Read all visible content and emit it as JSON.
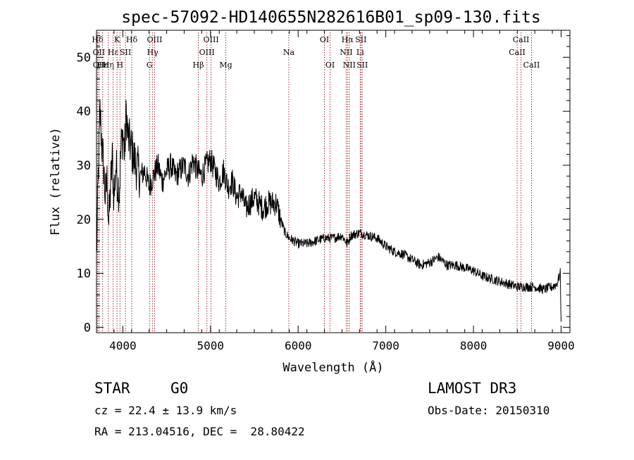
{
  "chart_data": {
    "type": "line",
    "title": "spec-57092-HD140655N282616B01_sp09-130.fits",
    "xlabel": "Wavelength (Å)",
    "ylabel": "Flux (relative)",
    "xlim": [
      3700,
      9100
    ],
    "ylim": [
      -1,
      55
    ],
    "x_ticks": [
      4000,
      5000,
      6000,
      7000,
      8000,
      9000
    ],
    "y_ticks": [
      0,
      10,
      20,
      30,
      40,
      50
    ],
    "x_tick_labels": [
      "4000",
      "5000",
      "6000",
      "7000",
      "8000",
      "9000"
    ],
    "y_tick_labels": [
      "0",
      "10",
      "20",
      "30",
      "40",
      "50"
    ],
    "grid": false,
    "series": [
      {
        "name": "flux",
        "color": "#000000",
        "x": [
          3700,
          3720,
          3740,
          3760,
          3780,
          3800,
          3820,
          3840,
          3860,
          3880,
          3900,
          3920,
          3940,
          3960,
          3980,
          4000,
          4020,
          4040,
          4060,
          4080,
          4100,
          4150,
          4200,
          4250,
          4300,
          4350,
          4400,
          4450,
          4500,
          4550,
          4600,
          4650,
          4700,
          4750,
          4800,
          4850,
          4900,
          4950,
          5000,
          5050,
          5100,
          5150,
          5200,
          5250,
          5300,
          5350,
          5400,
          5450,
          5500,
          5550,
          5600,
          5650,
          5700,
          5750,
          5800,
          5850,
          5900,
          5950,
          6000,
          6100,
          6200,
          6300,
          6400,
          6500,
          6560,
          6600,
          6700,
          6800,
          6900,
          7000,
          7100,
          7200,
          7300,
          7400,
          7500,
          7600,
          7700,
          7800,
          7900,
          8000,
          8100,
          8200,
          8300,
          8400,
          8500,
          8600,
          8700,
          8800,
          8900,
          8950,
          8990,
          9000
        ],
        "values": [
          13,
          28,
          40,
          34,
          30,
          24,
          27,
          19,
          26,
          31,
          24,
          30,
          27,
          25,
          33,
          36,
          32,
          40,
          35,
          34,
          33,
          30,
          28,
          29,
          26,
          28,
          30,
          27,
          29,
          30,
          28,
          29,
          30,
          28,
          31,
          29,
          28,
          30,
          31,
          29,
          27,
          29,
          26,
          27,
          24,
          25,
          22,
          23,
          24,
          23,
          22,
          23,
          23,
          23,
          20,
          17.5,
          16.5,
          16,
          15.5,
          15.5,
          16,
          16.5,
          16.5,
          17,
          15.5,
          17,
          17.5,
          17,
          16.5,
          15,
          14,
          13.5,
          12.5,
          11.5,
          12,
          13,
          11.5,
          11.5,
          11,
          10.5,
          9.5,
          9,
          8.5,
          8,
          7.5,
          7.5,
          7.5,
          7,
          7.5,
          8,
          10,
          1
        ]
      }
    ],
    "spectral_lines": [
      {
        "label": "Hδ",
        "wavelength": 3712,
        "row": 0
      },
      {
        "label": "OII",
        "wavelength": 3727,
        "row": 1
      },
      {
        "label": "OII",
        "wavelength": 3729,
        "row": 2
      },
      {
        "label": "Hε",
        "wavelength": 3770,
        "row": 2
      },
      {
        "label": "Hη",
        "wavelength": 3835,
        "row": 2
      },
      {
        "label": "Hε",
        "wavelength": 3889,
        "row": 1
      },
      {
        "label": "K",
        "wavelength": 3934,
        "row": 0
      },
      {
        "label": "H",
        "wavelength": 3968,
        "row": 2
      },
      {
        "label": "SII",
        "wavelength": 4030,
        "row": 1
      },
      {
        "label": "Hδ",
        "wavelength": 4102,
        "row": 0
      },
      {
        "label": "Hγ",
        "wavelength": 4340,
        "row": 1
      },
      {
        "label": "OIII",
        "wavelength": 4363,
        "row": 0
      },
      {
        "label": "G",
        "wavelength": 4305,
        "row": 2
      },
      {
        "label": "Hβ",
        "wavelength": 4861,
        "row": 2
      },
      {
        "label": "OIII",
        "wavelength": 4959,
        "row": 1
      },
      {
        "label": "OIII",
        "wavelength": 5007,
        "row": 0
      },
      {
        "label": "Mg",
        "wavelength": 5175,
        "row": 2
      },
      {
        "label": "Na",
        "wavelength": 5893,
        "row": 1
      },
      {
        "label": "OI",
        "wavelength": 6300,
        "row": 0
      },
      {
        "label": "OI",
        "wavelength": 6364,
        "row": 2
      },
      {
        "label": "NII",
        "wavelength": 6548,
        "row": 1
      },
      {
        "label": "Hα",
        "wavelength": 6563,
        "row": 0
      },
      {
        "label": "NII",
        "wavelength": 6583,
        "row": 2
      },
      {
        "label": "Li",
        "wavelength": 6708,
        "row": 1
      },
      {
        "label": "SII",
        "wavelength": 6716,
        "row": 0
      },
      {
        "label": "SII",
        "wavelength": 6731,
        "row": 2
      },
      {
        "label": "CaII",
        "wavelength": 8498,
        "row": 1
      },
      {
        "label": "CaII",
        "wavelength": 8542,
        "row": 0
      },
      {
        "label": "CaII",
        "wavelength": 8662,
        "row": 2
      }
    ],
    "line_marker_color": "#a52a2a"
  },
  "info": {
    "object_class": "STAR",
    "subclass": "G0",
    "survey": "LAMOST DR3",
    "redshift": "cz = 22.4 ± 13.9 km/s",
    "obs_date": "Obs-Date: 20150310",
    "coords": "RA = 213.04516, DEC =  28.80422"
  }
}
